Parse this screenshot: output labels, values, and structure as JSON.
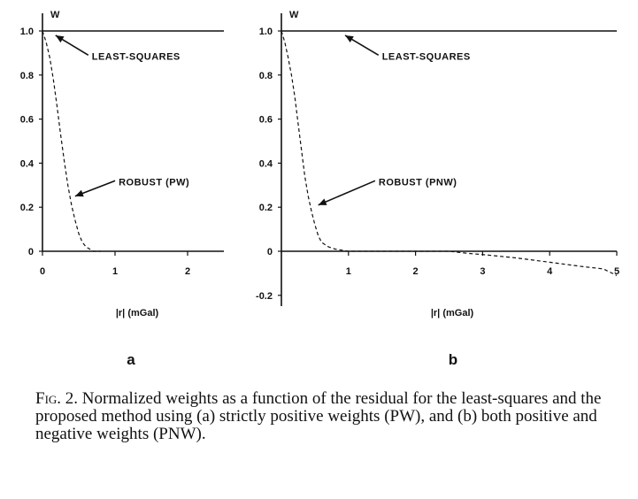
{
  "chart_data": [
    {
      "panel": "a",
      "type": "line",
      "ylabel": "W",
      "xlabel": "|r| (mGal)",
      "xlim": [
        0,
        2.5
      ],
      "ylim": [
        0,
        1.0
      ],
      "xticks": [
        "0",
        "1",
        "2"
      ],
      "yticks": [
        "0",
        "0.2",
        "0.4",
        "0.6",
        "0.8",
        "1.0"
      ],
      "series": [
        {
          "name": "LEAST-SQUARES",
          "style": "solid",
          "x": [
            0,
            2.5
          ],
          "y": [
            1.0,
            1.0
          ]
        },
        {
          "name": "ROBUST (PW)",
          "style": "dashed",
          "x": [
            0,
            0.05,
            0.1,
            0.15,
            0.2,
            0.25,
            0.3,
            0.35,
            0.4,
            0.45,
            0.5,
            0.55,
            0.6,
            0.65,
            0.7,
            0.75,
            0.8
          ],
          "y": [
            1.0,
            0.95,
            0.88,
            0.78,
            0.66,
            0.53,
            0.41,
            0.3,
            0.21,
            0.14,
            0.08,
            0.04,
            0.02,
            0.01,
            0.0,
            0.0,
            0.0
          ]
        }
      ],
      "annotations": [
        {
          "text": "LEAST-SQUARES",
          "x": 0.68,
          "y": 0.87,
          "arrow_to": [
            0.18,
            0.98
          ]
        },
        {
          "text": "ROBUST (PW)",
          "x": 1.05,
          "y": 0.3,
          "arrow_to": [
            0.45,
            0.25
          ]
        }
      ]
    },
    {
      "panel": "b",
      "type": "line",
      "ylabel": "W",
      "xlabel": "|r| (mGal)",
      "xlim": [
        0,
        5
      ],
      "ylim": [
        -0.25,
        1.0
      ],
      "xticks": [
        "1",
        "2",
        "3",
        "4",
        "5"
      ],
      "yticks": [
        "-0.2",
        "0",
        "0.2",
        "0.4",
        "0.6",
        "0.8",
        "1.0"
      ],
      "series": [
        {
          "name": "LEAST-SQUARES",
          "style": "solid",
          "x": [
            0,
            5
          ],
          "y": [
            1.0,
            1.0
          ]
        },
        {
          "name": "ROBUST (PNW)",
          "style": "dashed",
          "x": [
            0,
            0.05,
            0.1,
            0.15,
            0.2,
            0.25,
            0.3,
            0.35,
            0.4,
            0.45,
            0.5,
            0.55,
            0.6,
            0.7,
            0.8,
            1.0,
            1.5,
            2.0,
            2.5,
            2.8,
            3.0,
            3.5,
            4.0,
            4.5,
            4.8,
            5.0
          ],
          "y": [
            1.0,
            0.95,
            0.88,
            0.8,
            0.7,
            0.58,
            0.46,
            0.34,
            0.25,
            0.18,
            0.12,
            0.07,
            0.04,
            0.02,
            0.01,
            0.0,
            0.0,
            0.0,
            0.0,
            -0.01,
            -0.015,
            -0.03,
            -0.05,
            -0.07,
            -0.08,
            -0.11
          ]
        }
      ],
      "annotations": [
        {
          "text": "LEAST-SQUARES",
          "x": 1.5,
          "y": 0.87,
          "arrow_to": [
            0.95,
            0.98
          ]
        },
        {
          "text": "ROBUST (PNW)",
          "x": 1.45,
          "y": 0.3,
          "arrow_to": [
            0.55,
            0.21
          ]
        }
      ]
    }
  ],
  "panel_letters": [
    "a",
    "b"
  ],
  "caption": {
    "label": "Fig. 2.",
    "text": " Normalized weights as a function of the residual for the least-squares and the proposed method using (a) strictly positive weights (PW), and (b) both positive and negative weights (PNW)."
  }
}
